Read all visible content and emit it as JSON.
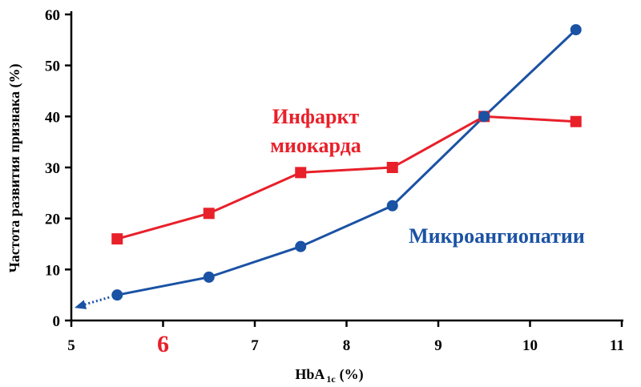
{
  "chart_data": {
    "type": "line",
    "title": "",
    "xlabel": "HbA",
    "xlabel_sub": "1c",
    "xlabel_suffix": "(%)",
    "ylabel": "Частота развития признака (%)",
    "xlim": [
      5,
      11
    ],
    "ylim": [
      0,
      60
    ],
    "x_ticks": [
      5,
      6,
      7,
      8,
      9,
      10,
      11
    ],
    "y_ticks": [
      0,
      10,
      20,
      30,
      40,
      50,
      60
    ],
    "highlighted_x_tick": 6,
    "highlight_color": "#e8202a",
    "grid": false,
    "x": [
      5.5,
      6.5,
      7.5,
      8.5,
      9.5,
      10.5
    ],
    "series": [
      {
        "name": "Инфаркт миокарда",
        "label_lines": [
          "Инфаркт",
          "миокарда"
        ],
        "color": "#e8202a",
        "marker": "square",
        "values": [
          16,
          21,
          29,
          30,
          40,
          39
        ]
      },
      {
        "name": "Микроангиопатии",
        "label_lines": [
          "Микроангиопатии"
        ],
        "color": "#1a52a4",
        "marker": "circle",
        "values": [
          5,
          8.5,
          14.5,
          22.5,
          40,
          57
        ],
        "extrapolation": {
          "style": "dotted-arrow",
          "to": [
            5,
            2.5
          ]
        }
      }
    ]
  }
}
